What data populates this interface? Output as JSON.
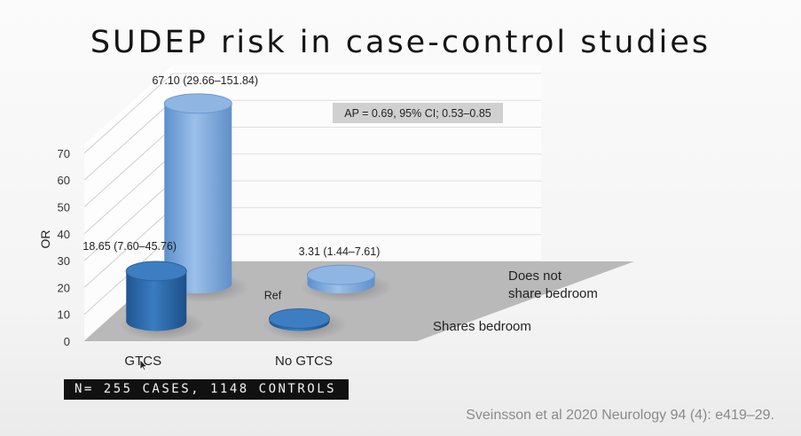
{
  "slide": {
    "title": "SUDEP risk in case-control studies",
    "citation": "Sveinsson et al  2020 Neurology 94 (4): e419–29.",
    "banner": "N= 255 CASES, 1148 CONTROLS"
  },
  "chart_data": {
    "type": "bar",
    "style": "3d-cylinder",
    "title": "",
    "ylabel": "OR",
    "ylim": [
      0,
      70
    ],
    "yticks": [
      0,
      10,
      20,
      30,
      40,
      50,
      60,
      70
    ],
    "categories": [
      "GTCS",
      "No GTCS"
    ],
    "series": [
      {
        "name": "Shares bedroom",
        "values": [
          18.65,
          1
        ],
        "labels": [
          "18.65 (7.60–45.76)",
          "Ref"
        ]
      },
      {
        "name": "Does not share bedroom",
        "values": [
          67.1,
          3.31
        ],
        "labels": [
          "67.10 (29.66–151.84)",
          "3.31 (1.44–7.61)"
        ]
      }
    ],
    "depth_labels": [
      "Shares bedroom",
      "Does not share bedroom"
    ],
    "depth_label_lines": [
      [
        "Shares bedroom"
      ],
      [
        "Does not",
        "share bedroom"
      ]
    ],
    "annotation": "AP = 0.69, 95% CI; 0.53–0.85",
    "grid": true,
    "colors": {
      "front_bar": "#2f6eb0",
      "back_bar": "#6f9fd6",
      "floor": "#b9b9b9",
      "wall": "#ffffff",
      "annotation_box": "#d0d0d0"
    }
  }
}
